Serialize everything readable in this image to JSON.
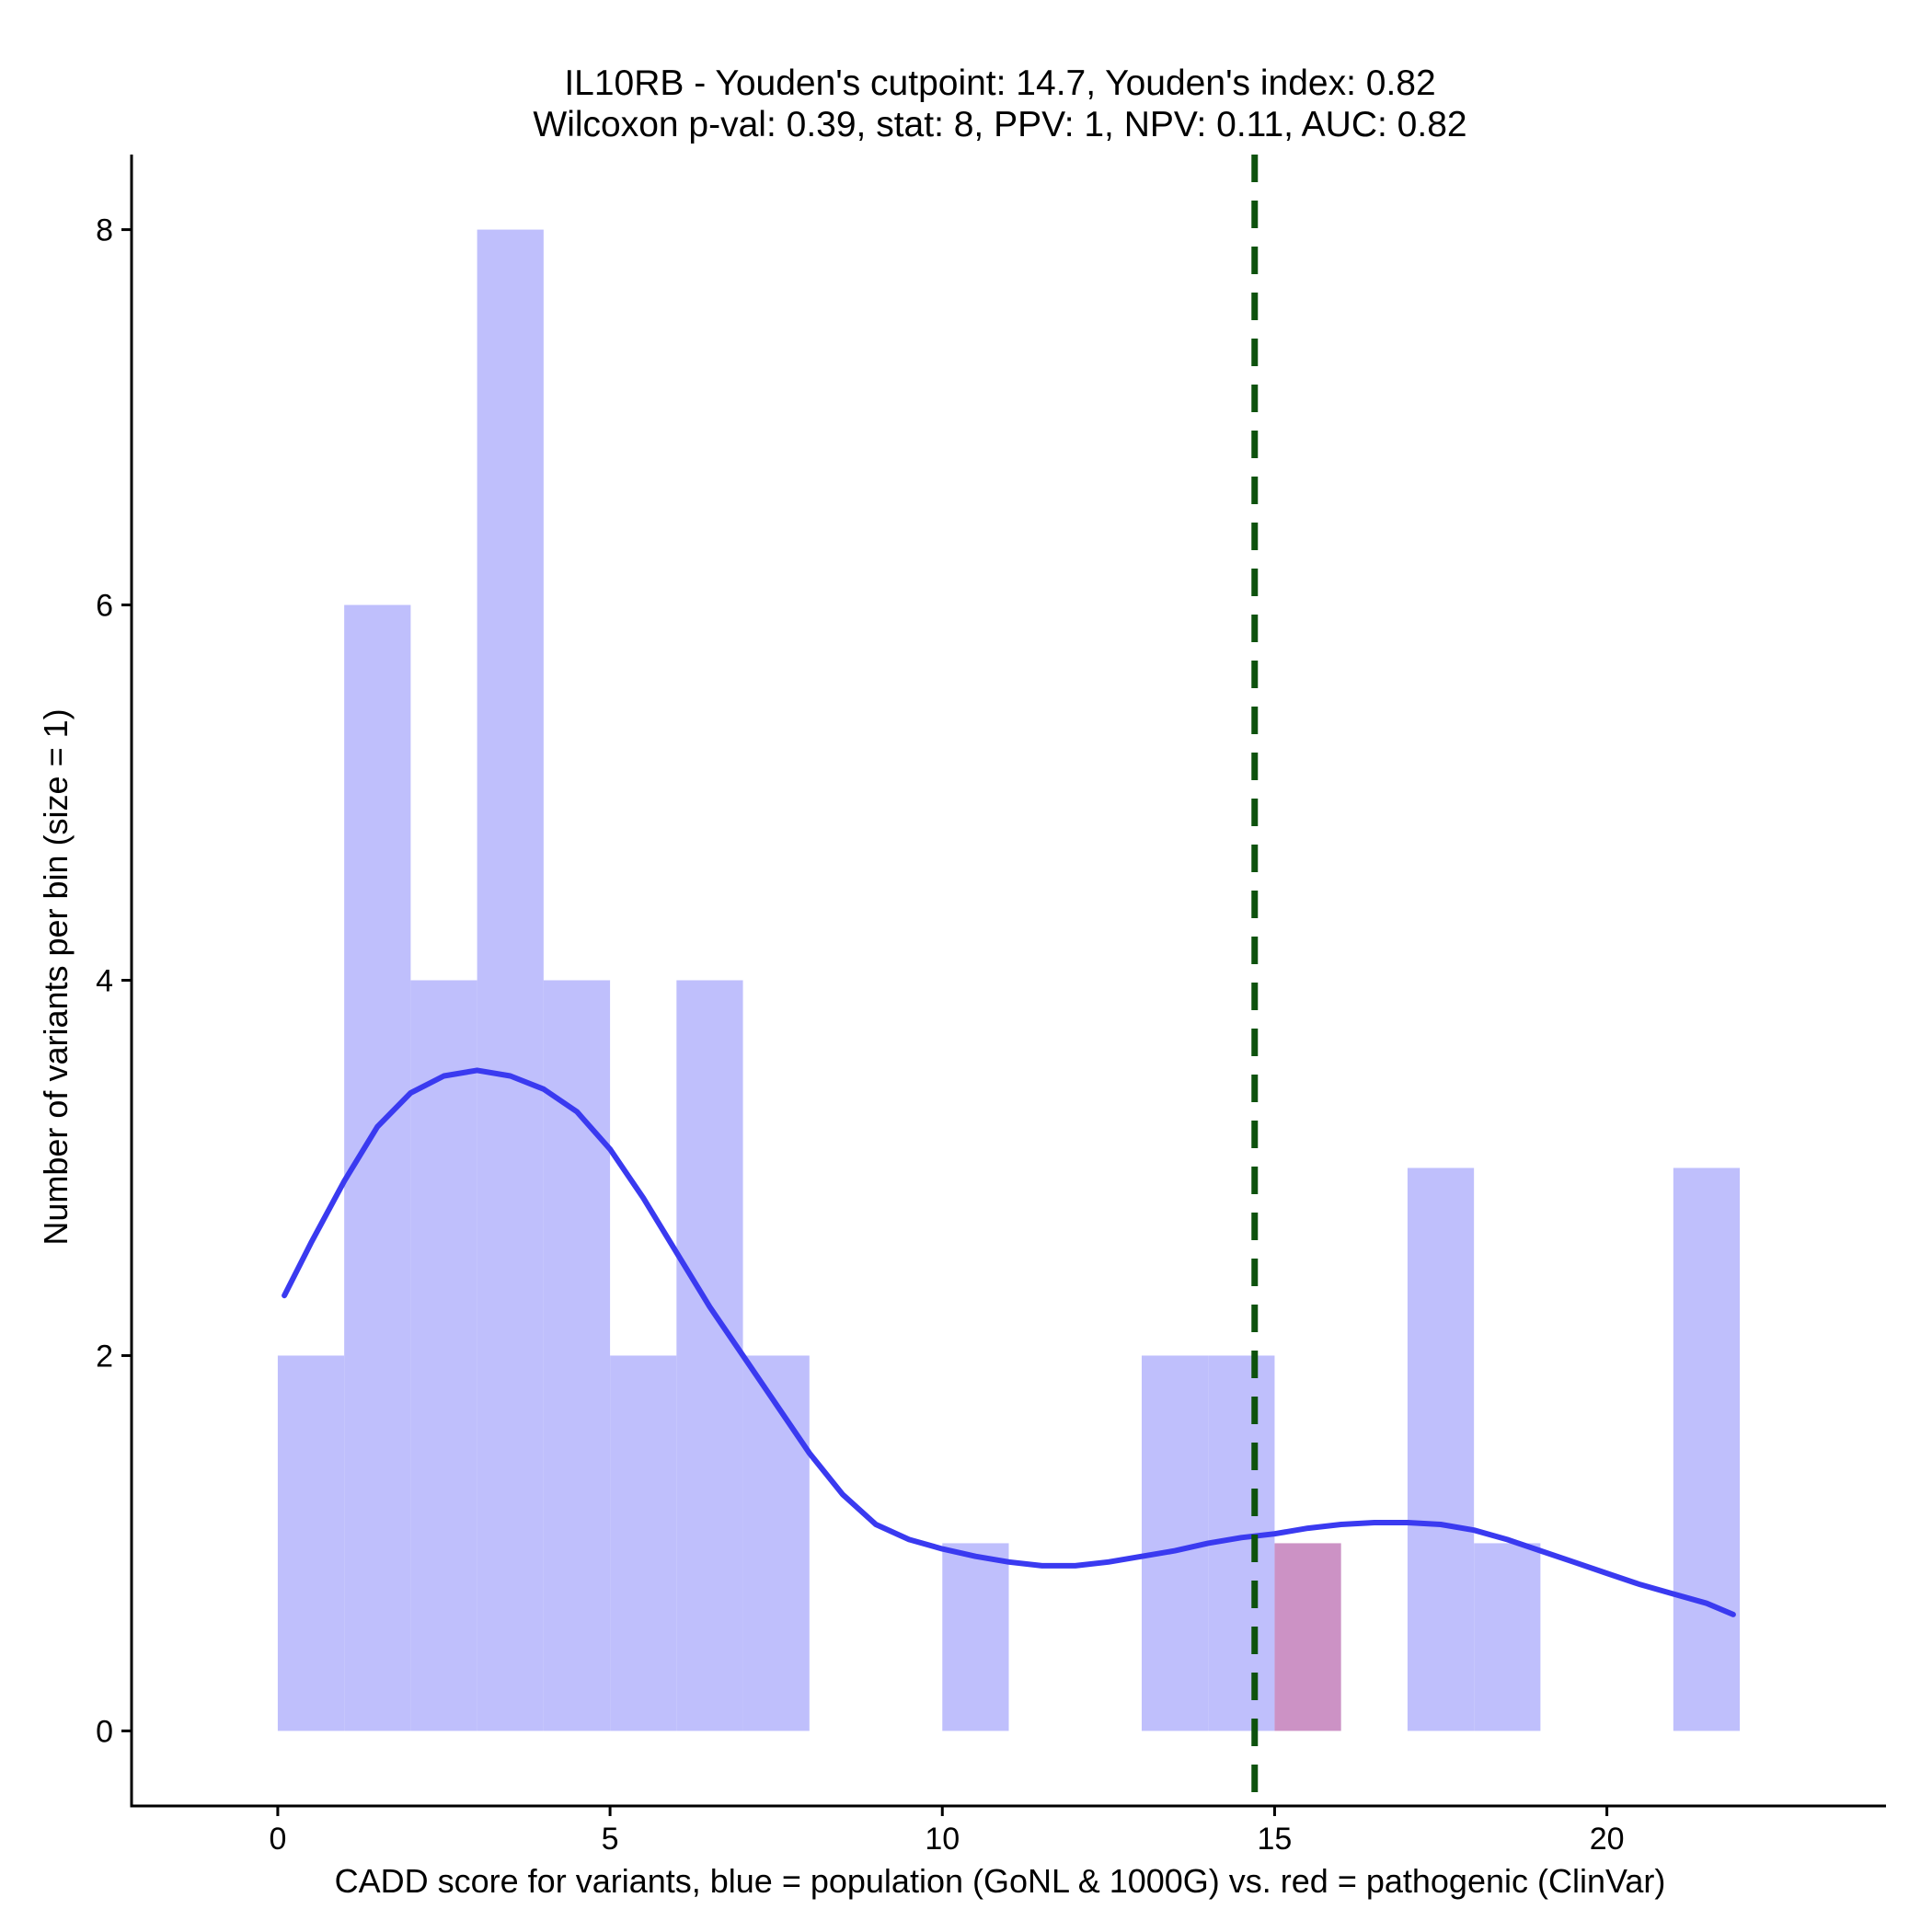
{
  "chart_data": {
    "type": "bar",
    "title": "IL10RB - Youden's cutpoint: 14.7, Youden's index: 0.82",
    "subtitle": "Wilcoxon p-val: 0.39, stat: 8, PPV: 1, NPV: 0.11, AUC: 0.82",
    "xlabel": "CADD score for variants, blue = population (GoNL & 1000G) vs. red = pathogenic (ClinVar)",
    "ylabel": "Number of variants per bin (size = 1)",
    "xlim": [
      -2.2,
      24.2
    ],
    "ylim": [
      -0.4,
      8.4
    ],
    "x_ticks": [
      0,
      5,
      10,
      15,
      20
    ],
    "x_tick_labels": [
      "0",
      "5",
      "10",
      "15",
      "20"
    ],
    "y_ticks": [
      0,
      2,
      4,
      6,
      8
    ],
    "y_tick_labels": [
      "0",
      "2",
      "4",
      "6",
      "8"
    ],
    "grid": false,
    "bin_size": 1,
    "series": [
      {
        "name": "population (GoNL & 1000G)",
        "color": "#bfbffc",
        "bins": [
          {
            "start": 0,
            "end": 1,
            "count": 2
          },
          {
            "start": 1,
            "end": 2,
            "count": 6
          },
          {
            "start": 2,
            "end": 3,
            "count": 4
          },
          {
            "start": 3,
            "end": 4,
            "count": 8
          },
          {
            "start": 4,
            "end": 5,
            "count": 4
          },
          {
            "start": 5,
            "end": 6,
            "count": 2
          },
          {
            "start": 6,
            "end": 7,
            "count": 4
          },
          {
            "start": 7,
            "end": 8,
            "count": 2
          },
          {
            "start": 10,
            "end": 11,
            "count": 1
          },
          {
            "start": 13,
            "end": 14,
            "count": 2
          },
          {
            "start": 14,
            "end": 15,
            "count": 2
          },
          {
            "start": 17,
            "end": 18,
            "count": 3
          },
          {
            "start": 18,
            "end": 19,
            "count": 1
          },
          {
            "start": 21,
            "end": 22,
            "count": 3
          }
        ]
      },
      {
        "name": "pathogenic (ClinVar)",
        "color": "#cc92c5",
        "bins": [
          {
            "start": 15,
            "end": 16,
            "count": 1
          }
        ]
      }
    ],
    "density_curve": {
      "name": "population density",
      "color": "#3a3af0",
      "x": [
        0.1,
        0.5,
        1,
        1.5,
        2,
        2.5,
        3,
        3.5,
        4,
        4.5,
        5,
        5.5,
        6,
        6.5,
        7,
        7.5,
        8,
        8.5,
        9,
        9.5,
        10,
        10.5,
        11,
        11.5,
        12,
        12.5,
        13,
        13.5,
        14,
        14.5,
        15,
        15.5,
        16,
        16.5,
        17,
        17.5,
        18,
        18.5,
        19,
        19.5,
        20,
        20.5,
        21,
        21.5,
        21.9
      ],
      "y": [
        2.32,
        2.6,
        2.93,
        3.22,
        3.4,
        3.49,
        3.52,
        3.49,
        3.42,
        3.3,
        3.1,
        2.84,
        2.55,
        2.26,
        2.0,
        1.74,
        1.48,
        1.26,
        1.1,
        1.02,
        0.97,
        0.93,
        0.9,
        0.88,
        0.88,
        0.9,
        0.93,
        0.96,
        1.0,
        1.03,
        1.05,
        1.08,
        1.1,
        1.11,
        1.11,
        1.1,
        1.07,
        1.02,
        0.96,
        0.9,
        0.84,
        0.78,
        0.73,
        0.68,
        0.62
      ]
    },
    "cutpoint": {
      "label": "Youden's cutpoint",
      "x": 14.7,
      "color": "#0d520d",
      "style": "dashed"
    }
  }
}
